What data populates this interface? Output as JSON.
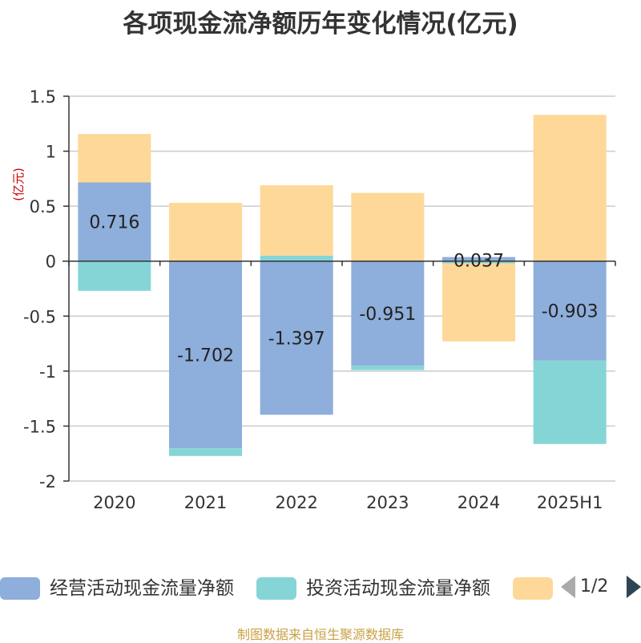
{
  "title": "各项现金流净额历年变化情况(亿元)",
  "source": "制图数据来自恒生聚源数据库",
  "legend_pager": {
    "page": "1/2"
  },
  "chart_data": {
    "type": "bar",
    "stacked": true,
    "title": "各项现金流净额历年变化情况(亿元)",
    "ylabel": "(亿元)",
    "ylim": [
      -2,
      1.5
    ],
    "yticks": [
      1.5,
      1,
      0.5,
      0,
      -0.5,
      -1,
      -1.5,
      -2
    ],
    "ytick_labels": [
      "1.5",
      "1",
      "0.5",
      "0",
      "-0.5",
      "-1",
      "-1.5",
      "-2"
    ],
    "categories": [
      "2020",
      "2021",
      "2022",
      "2023",
      "2024",
      "2025H1"
    ],
    "grid": true,
    "legend_position": "bottom",
    "series": [
      {
        "name": "经营活动现金流量净额",
        "color": "#8eaedb",
        "values": [
          0.716,
          -1.702,
          -1.397,
          -0.951,
          0.037,
          -0.903
        ],
        "labels": [
          "0.716",
          "-1.702",
          "-1.397",
          "-0.951",
          "0.037",
          "-0.903"
        ]
      },
      {
        "name": "投资活动现金流量净额",
        "color": "#86d5d6",
        "values": [
          -0.27,
          -0.07,
          0.05,
          -0.04,
          -0.02,
          -0.76
        ]
      },
      {
        "name": "",
        "color": "#fed898",
        "values": [
          0.44,
          0.53,
          0.64,
          0.62,
          -0.71,
          1.33
        ]
      }
    ]
  }
}
